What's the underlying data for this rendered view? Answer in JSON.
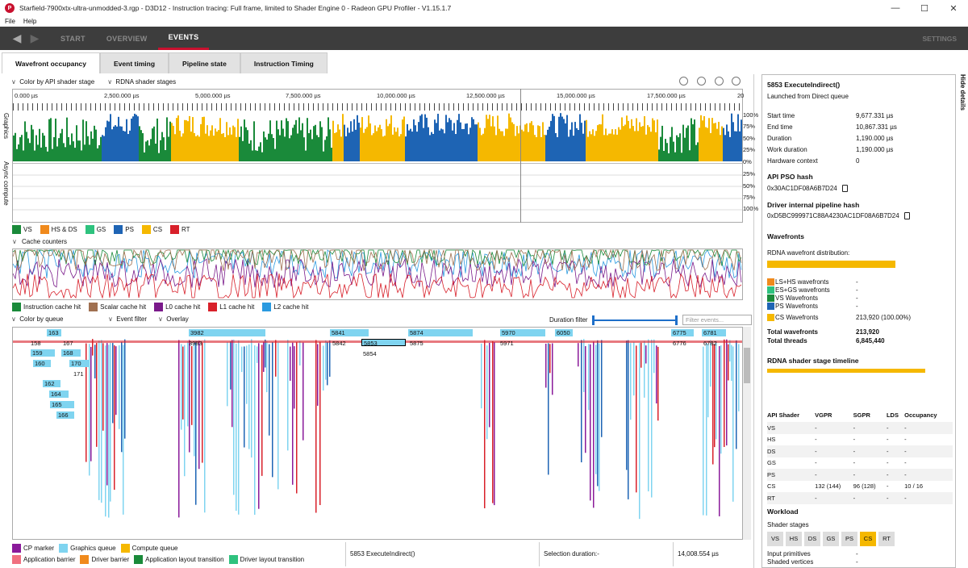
{
  "window": {
    "title": "Starfield-7900xtx-ultra-unmodded-3.rgp - D3D12 - Instruction tracing: Full frame, limited to Shader Engine 0 - Radeon GPU Profiler - V1.15.1.7",
    "icon": "rgp-logo-icon"
  },
  "menu": {
    "file": "File",
    "help": "Help"
  },
  "nav": {
    "start": "START",
    "overview": "OVERVIEW",
    "events": "EVENTS",
    "settings": "SETTINGS"
  },
  "subtabs": [
    "Wavefront occupancy",
    "Event timing",
    "Pipeline state",
    "Instruction Timing"
  ],
  "toolbar": {
    "color_mode": "Color by API shader stage",
    "stage_mode": "RDNA shader stages"
  },
  "ruler": {
    "labels": [
      "0.000 µs",
      "2,500.000 µs",
      "5,000.000 µs",
      "7,500.000 µs",
      "10,000.000 µs",
      "12,500.000 µs",
      "15,000.000 µs",
      "17,500.000 µs",
      "20"
    ]
  },
  "occupancy": {
    "graphics_label": "Graphics",
    "async_label": "Async compute",
    "pct_top": [
      "100%",
      "75%",
      "50%",
      "25%",
      "0%"
    ],
    "pct_bottom": [
      "25%",
      "50%",
      "75%",
      "100%"
    ]
  },
  "stage_legend": [
    {
      "label": "VS",
      "color": "#1a8a3a"
    },
    {
      "label": "HS & DS",
      "color": "#f08a1c"
    },
    {
      "label": "GS",
      "color": "#2ec27e"
    },
    {
      "label": "PS",
      "color": "#1e64b4"
    },
    {
      "label": "CS",
      "color": "#f5b800"
    },
    {
      "label": "RT",
      "color": "#d8202a"
    }
  ],
  "cache": {
    "header": "Cache counters",
    "legend": [
      {
        "label": "Instruction cache hit",
        "color": "#1a8a3a"
      },
      {
        "label": "Scalar cache hit",
        "color": "#a07050"
      },
      {
        "label": "L0 cache hit",
        "color": "#7a1a8a"
      },
      {
        "label": "L1 cache hit",
        "color": "#d8202a"
      },
      {
        "label": "L2 cache hit",
        "color": "#2a9ae0"
      }
    ]
  },
  "events_toolbar": {
    "color_by": "Color by queue",
    "event_filter": "Event filter",
    "overlay": "Overlay",
    "duration_filter": "Duration filter",
    "filter_placeholder": "Filter events..."
  },
  "event_labels": {
    "e163": "163",
    "e158": "158",
    "e159": "159",
    "e160": "160",
    "e162": "162",
    "e164": "164",
    "e165": "165",
    "e166": "166",
    "e167": "167",
    "e168": "168",
    "e170": "170",
    "e171": "171",
    "e3982": "3982",
    "e3983": "3983",
    "e5841": "5841",
    "e5842": "5842",
    "e5853": "5853",
    "e5854": "5854",
    "e5874": "5874",
    "e5875": "5875",
    "e5970": "5970",
    "e5971": "5971",
    "e6050": "6050",
    "e6775": "6775",
    "e6776": "6776",
    "e6781": "6781",
    "e6782": "6782"
  },
  "bottom_legend": [
    {
      "label": "CP marker",
      "color": "#8a1a9a"
    },
    {
      "label": "Graphics queue",
      "color": "#7fd4f0"
    },
    {
      "label": "Compute queue",
      "color": "#f5b800"
    },
    {
      "label": "Application barrier",
      "color": "#f07080"
    },
    {
      "label": "Driver barrier",
      "color": "#f08a1c"
    },
    {
      "label": "Application layout transition",
      "color": "#1a8a3a"
    },
    {
      "label": "Driver layout transition",
      "color": "#2ec27e"
    }
  ],
  "status": {
    "selected": "5853 ExecuteIndirect()",
    "selection_duration": "Selection duration:-",
    "time": "14,008.554 µs"
  },
  "details": {
    "hide": "Hide details",
    "title": "5853 ExecuteIndirect()",
    "subtitle": "Launched from Direct queue",
    "rows": [
      {
        "k": "Start time",
        "v": "9,677.331 µs"
      },
      {
        "k": "End time",
        "v": "10,867.331 µs"
      },
      {
        "k": "Duration",
        "v": "1,190.000 µs"
      },
      {
        "k": "Work duration",
        "v": "1,190.000 µs"
      },
      {
        "k": "Hardware context",
        "v": "0"
      }
    ],
    "pso_title": "API PSO hash",
    "pso": "0x30AC1DF08A6B7D24",
    "drv_title": "Driver internal pipeline hash",
    "drv": "0xD5BC999971C88A4230AC1DF08A6B7D24",
    "wf_title": "Wavefronts",
    "wf_dist": "RDNA wavefront distribution:",
    "wf_rows": [
      {
        "k": "LS+HS wavefronts",
        "v": "-",
        "color": "#f08a1c"
      },
      {
        "k": "ES+GS wavefronts",
        "v": "-",
        "color": "#2ec27e"
      },
      {
        "k": "VS Wavefronts",
        "v": "-",
        "color": "#1a8a3a"
      },
      {
        "k": "PS Wavefronts",
        "v": "-",
        "color": "#1e64b4"
      },
      {
        "k": "CS Wavefronts",
        "v": "213,920 (100.00%)",
        "color": "#f5b800"
      }
    ],
    "total_wf_k": "Total wavefronts",
    "total_wf_v": "213,920",
    "total_th_k": "Total threads",
    "total_th_v": "6,845,440",
    "timeline_title": "RDNA shader stage timeline",
    "table_headers": [
      "API Shader",
      "VGPR",
      "SGPR",
      "LDS",
      "Occupancy"
    ],
    "table_rows": [
      [
        "VS",
        "-",
        "-",
        "-",
        "-"
      ],
      [
        "HS",
        "-",
        "-",
        "-",
        "-"
      ],
      [
        "DS",
        "-",
        "-",
        "-",
        "-"
      ],
      [
        "GS",
        "-",
        "-",
        "-",
        "-"
      ],
      [
        "PS",
        "-",
        "-",
        "-",
        "-"
      ],
      [
        "CS",
        "132 (144)",
        "96 (128)",
        "-",
        "10 / 16"
      ],
      [
        "RT",
        "-",
        "-",
        "-",
        "-"
      ]
    ],
    "workload_title": "Workload",
    "shader_stages": "Shader stages",
    "stages": [
      "VS",
      "HS",
      "DS",
      "GS",
      "PS",
      "CS",
      "RT"
    ],
    "input_prims": "Input primitives",
    "input_prims_v": "-",
    "shaded_verts": "Shaded vertices",
    "shaded_verts_v": "-"
  }
}
